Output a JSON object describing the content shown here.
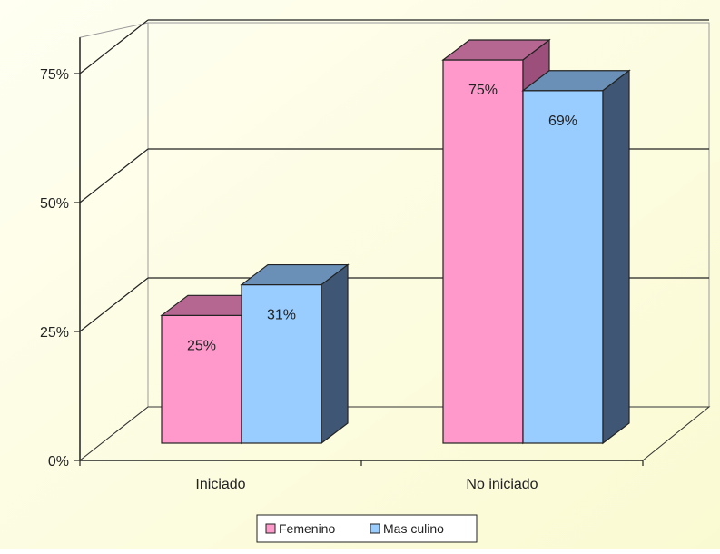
{
  "chart_data": {
    "type": "bar",
    "categories": [
      "Iniciado",
      "No iniciado"
    ],
    "series": [
      {
        "name": "Femenino",
        "values": [
          25,
          75
        ],
        "labels": [
          "25%",
          "75%"
        ]
      },
      {
        "name": "Mas culino",
        "values": [
          31,
          69
        ],
        "labels": [
          "31%",
          "69%"
        ]
      }
    ],
    "ylim": [
      0,
      75
    ],
    "yticks": [
      0,
      25,
      50,
      75
    ],
    "ytick_labels": [
      "0%",
      "25%",
      "50%",
      "75%"
    ],
    "grid": true,
    "legend_position": "bottom",
    "colors": {
      "background": "#fefee6",
      "femenino_front": "#ff99cc",
      "femenino_top": "#b66791",
      "femenino_side": "#9b4f7a",
      "masculino_front": "#99ccff",
      "masculino_top": "#6a90b8",
      "masculino_side": "#3f5775"
    }
  }
}
